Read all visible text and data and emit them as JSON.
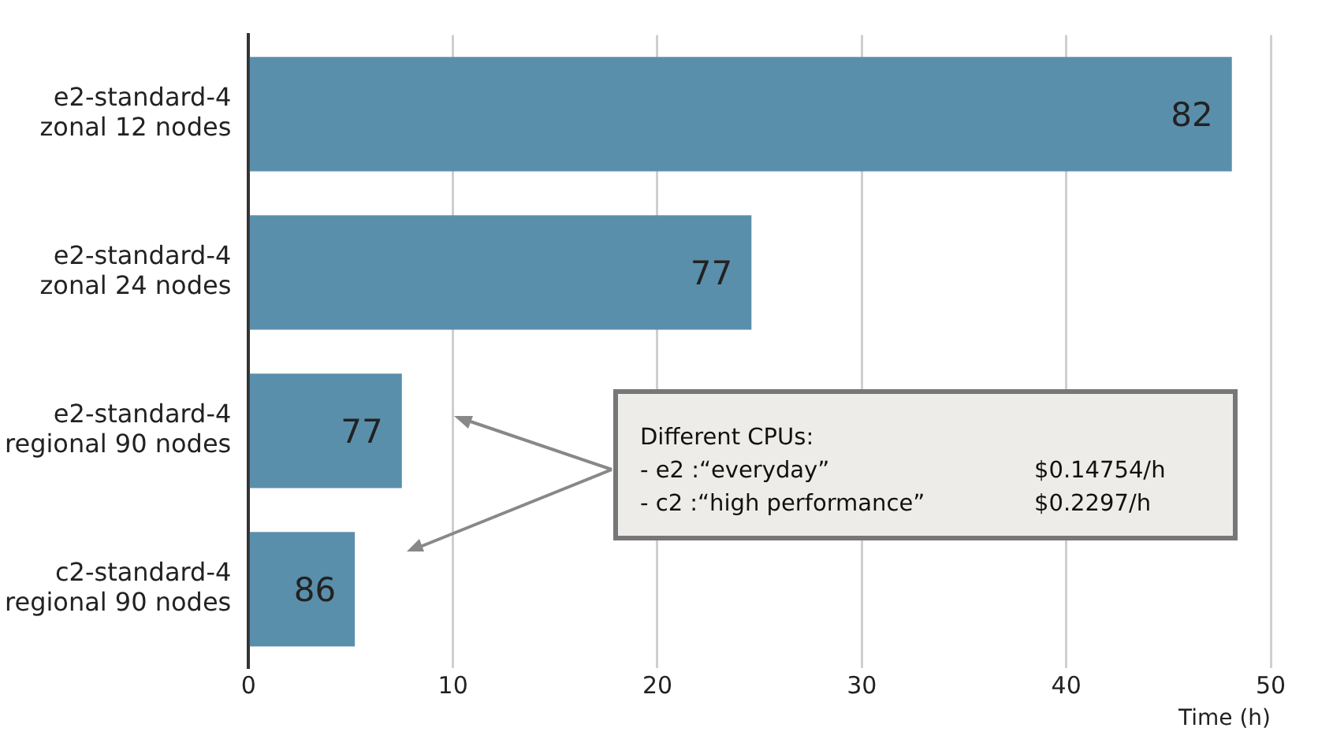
{
  "chart_data": {
    "type": "bar",
    "orientation": "horizontal",
    "categories": [
      "e2-standard-4\nzonal 12 nodes",
      "e2-standard-4\nzonal 24 nodes",
      "e2-standard-4\nregional 90 nodes",
      "c2-standard-4\nregional 90 nodes"
    ],
    "values": [
      48.1,
      24.6,
      7.5,
      5.2
    ],
    "color": "#5a8fab",
    "xlim": [
      0,
      50
    ],
    "xticks": [
      0,
      10,
      20,
      30,
      40,
      50
    ],
    "xlabel": "Time (h)",
    "grid": "x",
    "legend": false,
    "annotations": [
      "Different CPUs:",
      "- e2 :“everyday”",
      "$0.14754/h",
      "- c2 :“high performance”",
      "$0.2297/h",
      {
        "text": "82",
        "x": 48.1,
        "y": "e2-standard-4\nzonal 12 nodes"
      },
      {
        "text": "77",
        "x": 24.6,
        "y": "e2-standard-4\nzonal 24 nodes"
      },
      {
        "text": "77",
        "x": 7.5,
        "y": "e2-standard-4\nregional 90 nodes"
      },
      {
        "text": "86",
        "x": 5.2,
        "y": "c2-standard-4\nregional 90 nodes"
      }
    ]
  }
}
